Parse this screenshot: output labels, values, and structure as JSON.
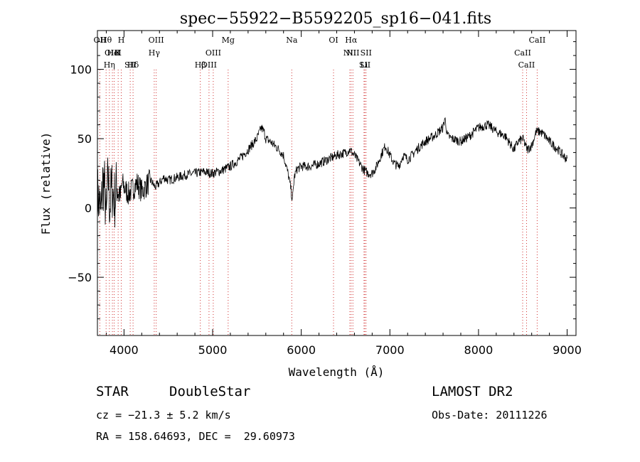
{
  "chart_data": {
    "type": "line",
    "title": "spec−55922−B5592205_sp16−041.fits",
    "xlabel": "Wavelength (Å)",
    "ylabel": "Flux (relative)",
    "xlim": [
      3700,
      9100
    ],
    "ylim": [
      -92,
      128
    ],
    "x_ticks": [
      4000,
      5000,
      6000,
      7000,
      8000,
      9000
    ],
    "y_ticks": [
      -50,
      0,
      50,
      100
    ],
    "series": [
      {
        "x": [
          3700,
          3720,
          3740,
          3760,
          3780,
          3800,
          3820,
          3840,
          3860,
          3880,
          3900,
          3920,
          3940,
          3960,
          3980,
          4000,
          4050,
          4100,
          4150,
          4200,
          4250,
          4300,
          4350,
          4400,
          4450,
          4500,
          4600,
          4700,
          4800,
          4900,
          5000,
          5100,
          5200,
          5300,
          5400,
          5500,
          5550,
          5580,
          5600,
          5650,
          5700,
          5750,
          5800,
          5850,
          5880,
          5900,
          5920,
          5950,
          6000,
          6100,
          6200,
          6300,
          6400,
          6500,
          6550,
          6600,
          6650,
          6700,
          6750,
          6800,
          6850,
          6900,
          6950,
          7000,
          7050,
          7100,
          7150,
          7200,
          7250,
          7300,
          7400,
          7500,
          7550,
          7600,
          7620,
          7650,
          7700,
          7800,
          7900,
          8000,
          8100,
          8150,
          8200,
          8300,
          8400,
          8450,
          8500,
          8550,
          8600,
          8650,
          8700,
          8750,
          8800,
          8850,
          8900,
          8950,
          9000
        ],
        "y": [
          10,
          5,
          -5,
          20,
          15,
          -10,
          25,
          0,
          15,
          10,
          5,
          20,
          12,
          8,
          18,
          15,
          10,
          14,
          18,
          12,
          16,
          20,
          15,
          18,
          22,
          20,
          22,
          24,
          25,
          26,
          25,
          27,
          30,
          35,
          42,
          50,
          58,
          55,
          50,
          48,
          45,
          42,
          38,
          25,
          15,
          5,
          22,
          28,
          30,
          30,
          32,
          35,
          38,
          40,
          42,
          38,
          33,
          28,
          25,
          25,
          30,
          38,
          45,
          38,
          32,
          30,
          38,
          35,
          38,
          42,
          48,
          52,
          55,
          58,
          65,
          52,
          50,
          48,
          52,
          58,
          60,
          58,
          55,
          52,
          42,
          48,
          50,
          42,
          45,
          55,
          55,
          52,
          48,
          45,
          42,
          38,
          35
        ]
      }
    ],
    "line_markers": [
      {
        "label": "Hθ",
        "x": 3798
      },
      {
        "label": "K",
        "x": 3934
      },
      {
        "label": "Hδ",
        "x": 4102
      },
      {
        "label": "OII",
        "x": 3727
      },
      {
        "label": "HeI",
        "x": 3889
      },
      {
        "label": "SII",
        "x": 4070
      },
      {
        "label": "OIII",
        "x": 4363
      },
      {
        "label": "OIII",
        "x": 3869
      },
      {
        "label": "Hη",
        "x": 3835
      },
      {
        "label": "H",
        "x": 3969
      },
      {
        "label": "Hγ",
        "x": 4341
      },
      {
        "label": "Hβ",
        "x": 4861
      },
      {
        "label": "Mg",
        "x": 5175
      },
      {
        "label": "OIII",
        "x": 5007
      },
      {
        "label": "OIII",
        "x": 4959
      },
      {
        "label": "Na",
        "x": 5893
      },
      {
        "label": "NII",
        "x": 6583
      },
      {
        "label": "Li",
        "x": 6708
      },
      {
        "label": "OI",
        "x": 6364
      },
      {
        "label": "NII",
        "x": 6548
      },
      {
        "label": "SII",
        "x": 6717
      },
      {
        "label": "Hα",
        "x": 6563
      },
      {
        "label": "SII",
        "x": 6731
      },
      {
        "label": "CaII",
        "x": 8542
      },
      {
        "label": "CaII",
        "x": 8662
      },
      {
        "label": "CaII",
        "x": 8498
      }
    ]
  },
  "info": {
    "class": "STAR",
    "subclass": "DoubleStar",
    "survey": "LAMOST DR2",
    "cz": "cz = −21.3 ± 5.2 km/s",
    "obs_date": "Obs-Date: 20111226",
    "radec": "RA = 158.64693, DEC =  29.60973"
  }
}
